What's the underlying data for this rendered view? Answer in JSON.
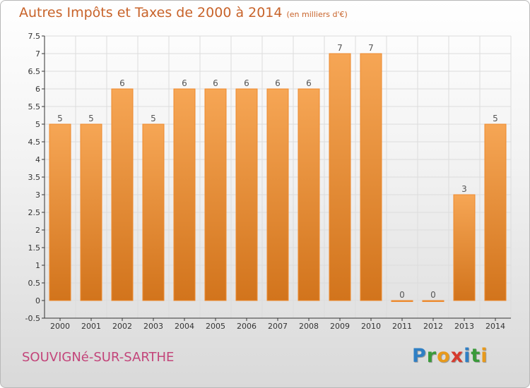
{
  "header": {
    "title": "Autres Impôts et Taxes de 2000 à 2014",
    "unit": "(en milliers d'€)"
  },
  "footer": {
    "city": "SOUVIGNé-SUR-SARTHE",
    "logo_letters": [
      "P",
      "r",
      "o",
      "x",
      "i",
      "t",
      "i"
    ],
    "logo_colors": [
      "#2f7fc4",
      "#3a9a3a",
      "#e89a1c",
      "#d63b2e",
      "#2f7fc4",
      "#3a9a3a",
      "#e89a1c"
    ]
  },
  "colors": {
    "bar_light": "#f6a655",
    "bar_dark": "#d2741c",
    "bar_stroke": "#ee8a2e",
    "grid": "#dcdcdc",
    "title": "#c8632a",
    "city": "#c3457a"
  },
  "chart_data": {
    "type": "bar",
    "categories": [
      "2000",
      "2001",
      "2002",
      "2003",
      "2004",
      "2005",
      "2006",
      "2007",
      "2008",
      "2009",
      "2010",
      "2011",
      "2012",
      "2013",
      "2014"
    ],
    "values": [
      5,
      5,
      6,
      5,
      6,
      6,
      6,
      6,
      6,
      7,
      7,
      0,
      0,
      3,
      5
    ],
    "data_labels": [
      "5",
      "5",
      "6",
      "5",
      "6",
      "6",
      "6",
      "6",
      "6",
      "7",
      "7",
      "0",
      "0",
      "3",
      "5"
    ],
    "title": "Autres Impôts et Taxes de 2000 à 2014",
    "xlabel": "",
    "ylabel": "",
    "ylim": [
      -0.5,
      7.5
    ],
    "yticks": [
      "-0.5",
      "0",
      "0.5",
      "1",
      "1.5",
      "2",
      "2.5",
      "3",
      "3.5",
      "4",
      "4.5",
      "5",
      "5.5",
      "6",
      "6.5",
      "7",
      "7.5"
    ],
    "grid": true,
    "legend": "none"
  }
}
